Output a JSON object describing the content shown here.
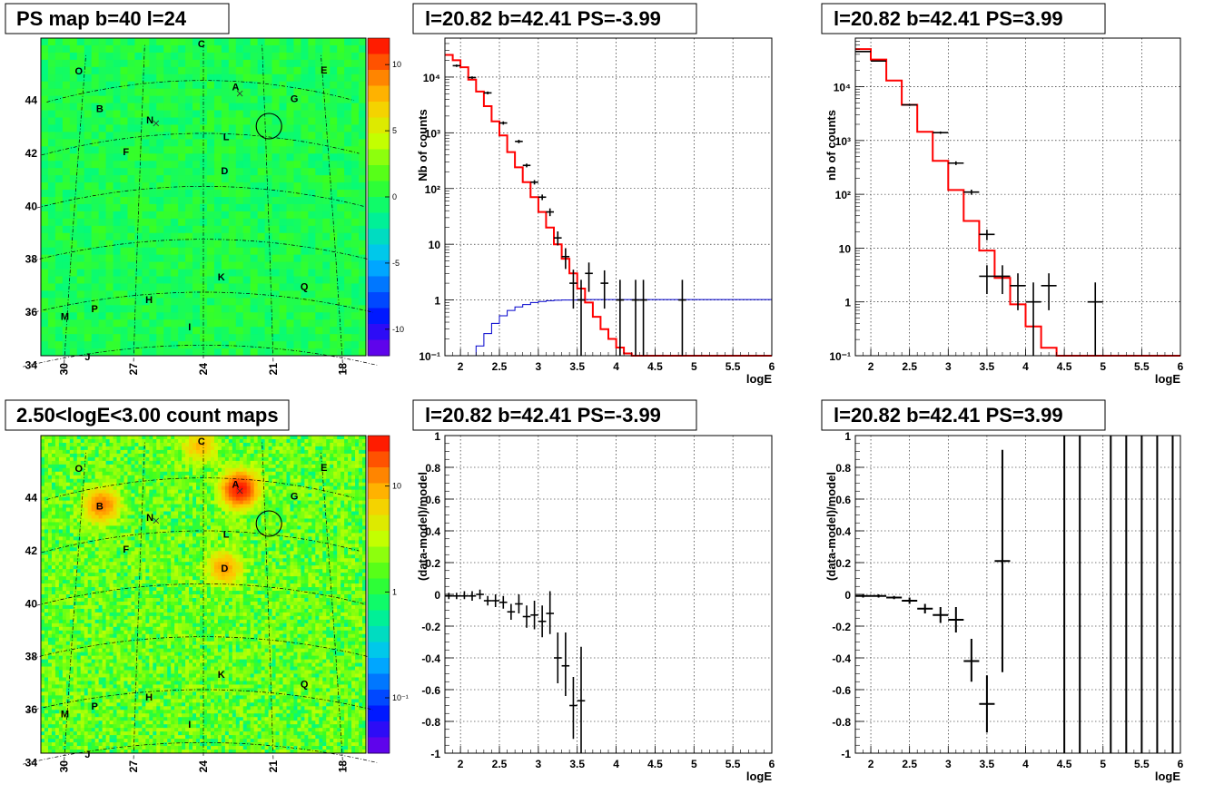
{
  "colors": {
    "model_line": "#ff0000",
    "background_line": "#0000cc",
    "data_points": "#000000",
    "grid": "#000000"
  },
  "chart_data": [
    {
      "id": "ps-map",
      "type": "heatmap",
      "title": "PS map b=40 l=24",
      "xlabel": "",
      "ylabel": "",
      "x_ticks": [
        "30",
        "27",
        "24",
        "21",
        "18"
      ],
      "y_ticks": [
        "34",
        "36",
        "38",
        "40",
        "42",
        "44"
      ],
      "colorbar_ticks": [
        "10",
        "5",
        "0",
        "-5",
        "-10"
      ],
      "colorbar_range": [
        -12,
        12
      ],
      "base_value": 0,
      "sources": [
        {
          "label": "O",
          "l": 30.3,
          "b": 44.9
        },
        {
          "label": "C",
          "l": 24.1,
          "b": 45.4
        },
        {
          "label": "E",
          "l": 17.9,
          "b": 44.9
        },
        {
          "label": "A",
          "l": 22.4,
          "b": 43.8
        },
        {
          "label": "G",
          "l": 19.5,
          "b": 43.6
        },
        {
          "label": "B",
          "l": 29.1,
          "b": 43.3
        },
        {
          "label": "N",
          "l": 26.6,
          "b": 42.6
        },
        {
          "label": "L",
          "l": 22.9,
          "b": 41.9
        },
        {
          "label": "F",
          "l": 27.7,
          "b": 41.5
        },
        {
          "label": "D",
          "l": 23.0,
          "b": 40.6
        },
        {
          "label": "K",
          "l": 23.2,
          "b": 36.6
        },
        {
          "label": "Q",
          "l": 19.5,
          "b": 36.5
        },
        {
          "label": "M",
          "l": 30.1,
          "b": 35.6
        },
        {
          "label": "P",
          "l": 28.8,
          "b": 35.7
        },
        {
          "label": "H",
          "l": 26.4,
          "b": 35.8
        },
        {
          "label": "I",
          "l": 24.6,
          "b": 34.7
        },
        {
          "label": "J",
          "l": 29.0,
          "b": 33.9
        }
      ],
      "circle": {
        "l": 20.82,
        "b": 42.41
      }
    },
    {
      "id": "spectrum-neg",
      "type": "line",
      "title": "l=20.82 b=42.41 PS=-3.99",
      "xlabel": "logE",
      "ylabel": "Nb of counts",
      "xlim": [
        1.8,
        6
      ],
      "ylim": [
        0.1,
        50000
      ],
      "log_y": true,
      "x_ticks": [
        "2",
        "2.5",
        "3",
        "3.5",
        "4",
        "4.5",
        "5",
        "5.5",
        "6"
      ],
      "y_ticks": [
        "10⁻¹",
        "1",
        "10",
        "10²",
        "10³",
        "10⁴"
      ],
      "model_step": {
        "edges": [
          1.8,
          1.9,
          2.0,
          2.1,
          2.2,
          2.3,
          2.4,
          2.5,
          2.6,
          2.7,
          2.8,
          2.9,
          3.0,
          3.1,
          3.2,
          3.3,
          3.4,
          3.5,
          3.6,
          3.7,
          3.8,
          3.9,
          4.0,
          4.1,
          4.2,
          6.0
        ],
        "values": [
          25000,
          20000,
          15000,
          9000,
          5500,
          3000,
          1600,
          900,
          450,
          240,
          130,
          70,
          38,
          20,
          10,
          5.5,
          3,
          1.6,
          0.9,
          0.5,
          0.3,
          0.2,
          0.14,
          0.11,
          0.1
        ]
      },
      "background_step": {
        "edges": [
          1.8,
          2.2,
          2.3,
          2.4,
          2.5,
          2.6,
          2.7,
          2.8,
          2.9,
          3.0,
          3.1,
          3.2,
          3.3,
          3.5,
          6.0
        ],
        "values": [
          0.1,
          0.15,
          0.25,
          0.38,
          0.52,
          0.65,
          0.75,
          0.83,
          0.9,
          0.94,
          0.97,
          0.99,
          1.0,
          1.02
        ]
      },
      "points": [
        {
          "x": 1.95,
          "y": 16000,
          "ex": 0.05,
          "lo": 15200,
          "hi": 16800
        },
        {
          "x": 2.15,
          "y": 9800,
          "ex": 0.05,
          "lo": 9300,
          "hi": 10300
        },
        {
          "x": 2.35,
          "y": 5200,
          "ex": 0.05,
          "lo": 4900,
          "hi": 5500
        },
        {
          "x": 2.55,
          "y": 1500,
          "ex": 0.05,
          "lo": 1400,
          "hi": 1600
        },
        {
          "x": 2.75,
          "y": 700,
          "ex": 0.05,
          "lo": 650,
          "hi": 750
        },
        {
          "x": 2.85,
          "y": 260,
          "ex": 0.05,
          "lo": 240,
          "hi": 280
        },
        {
          "x": 2.95,
          "y": 130,
          "ex": 0.05,
          "lo": 118,
          "hi": 142
        },
        {
          "x": 3.05,
          "y": 70,
          "ex": 0.05,
          "lo": 62,
          "hi": 78
        },
        {
          "x": 3.15,
          "y": 38,
          "ex": 0.05,
          "lo": 32,
          "hi": 44
        },
        {
          "x": 3.25,
          "y": 13,
          "ex": 0.05,
          "lo": 9.5,
          "hi": 17
        },
        {
          "x": 3.35,
          "y": 6,
          "ex": 0.05,
          "lo": 3.6,
          "hi": 8.5
        },
        {
          "x": 3.45,
          "y": 2,
          "ex": 0.05,
          "lo": 0.7,
          "hi": 3.5
        },
        {
          "x": 3.55,
          "y": 1,
          "ex": 0.05,
          "lo": 0.1,
          "hi": 2.3
        },
        {
          "x": 3.65,
          "y": 3,
          "ex": 0.05,
          "lo": 1.4,
          "hi": 4.7
        },
        {
          "x": 3.85,
          "y": 2,
          "ex": 0.05,
          "lo": 0.7,
          "hi": 3.4
        },
        {
          "x": 4.05,
          "y": 1,
          "ex": 0.05,
          "lo": 0.1,
          "hi": 2.3
        },
        {
          "x": 4.25,
          "y": 1,
          "ex": 0.05,
          "lo": 0.1,
          "hi": 2.3
        },
        {
          "x": 4.35,
          "y": 1,
          "ex": 0.05,
          "lo": 0.1,
          "hi": 2.3
        },
        {
          "x": 4.85,
          "y": 1,
          "ex": 0.05,
          "lo": 0.1,
          "hi": 2.3
        }
      ]
    },
    {
      "id": "spectrum-pos",
      "type": "line",
      "title": "l=20.82 b=42.41 PS=3.99",
      "xlabel": "logE",
      "ylabel": "nb of counts",
      "xlim": [
        1.8,
        6
      ],
      "ylim": [
        0.1,
        80000
      ],
      "log_y": true,
      "x_ticks": [
        "2",
        "2.5",
        "3",
        "3.5",
        "4",
        "4.5",
        "5",
        "5.5",
        "6"
      ],
      "y_ticks": [
        "10⁻¹",
        "1",
        "10",
        "10²",
        "10³",
        "10⁴"
      ],
      "model_step": {
        "edges": [
          1.8,
          2.0,
          2.2,
          2.4,
          2.6,
          2.8,
          3.0,
          3.2,
          3.4,
          3.6,
          3.8,
          4.0,
          4.2,
          4.4,
          6.0
        ],
        "values": [
          50000,
          32000,
          13000,
          4600,
          1450,
          420,
          120,
          32,
          9,
          2.8,
          0.9,
          0.35,
          0.14,
          0.1
        ]
      },
      "points": [
        {
          "x": 1.9,
          "y": 45000,
          "ex": 0.1,
          "lo": 44000,
          "hi": 46000
        },
        {
          "x": 2.1,
          "y": 30000,
          "ex": 0.1,
          "lo": 29300,
          "hi": 30700
        },
        {
          "x": 2.5,
          "y": 4600,
          "ex": 0.1,
          "lo": 4400,
          "hi": 4800
        },
        {
          "x": 2.9,
          "y": 1400,
          "ex": 0.1,
          "lo": 1330,
          "hi": 1470
        },
        {
          "x": 3.1,
          "y": 380,
          "ex": 0.1,
          "lo": 350,
          "hi": 410
        },
        {
          "x": 3.3,
          "y": 110,
          "ex": 0.1,
          "lo": 98,
          "hi": 122
        },
        {
          "x": 3.5,
          "y": 18,
          "ex": 0.1,
          "lo": 14,
          "hi": 22
        },
        {
          "x": 3.5,
          "y": 3,
          "ex": 0.1,
          "lo": 1.4,
          "hi": 4.8
        },
        {
          "x": 3.7,
          "y": 3,
          "ex": 0.1,
          "lo": 1.4,
          "hi": 4.8
        },
        {
          "x": 3.9,
          "y": 2,
          "ex": 0.1,
          "lo": 0.7,
          "hi": 3.4
        },
        {
          "x": 4.1,
          "y": 1,
          "ex": 0.1,
          "lo": 0.1,
          "hi": 2.3
        },
        {
          "x": 4.3,
          "y": 2,
          "ex": 0.1,
          "lo": 0.7,
          "hi": 3.4
        },
        {
          "x": 4.9,
          "y": 1,
          "ex": 0.1,
          "lo": 0.1,
          "hi": 2.3
        }
      ]
    },
    {
      "id": "count-map",
      "type": "heatmap",
      "title": "2.50<logE<3.00 count maps",
      "xlabel": "",
      "ylabel": "",
      "x_ticks": [
        "30",
        "27",
        "24",
        "21",
        "18"
      ],
      "y_ticks": [
        "34",
        "36",
        "38",
        "40",
        "42",
        "44"
      ],
      "colorbar_ticks": [
        "10",
        "1",
        "10⁻¹"
      ],
      "colorbar_range": [
        0.03,
        30
      ],
      "log_scale": true,
      "base_value": 1.5,
      "hotspots": [
        {
          "label": "A",
          "l": 22.2,
          "b": 43.6,
          "peak": 25
        },
        {
          "label": "B",
          "l": 29.0,
          "b": 43.3,
          "peak": 12
        },
        {
          "label": "C",
          "l": 24.2,
          "b": 45.2,
          "peak": 6
        },
        {
          "label": "D",
          "l": 23.0,
          "b": 40.6,
          "peak": 9
        }
      ],
      "circle": {
        "l": 20.82,
        "b": 42.41
      }
    },
    {
      "id": "residual-neg",
      "type": "scatter",
      "title": "l=20.82 b=42.41 PS=-3.99",
      "xlabel": "logE",
      "ylabel": "(data-model)/model",
      "xlim": [
        1.8,
        6
      ],
      "ylim": [
        -1,
        1
      ],
      "x_ticks": [
        "2",
        "2.5",
        "3",
        "3.5",
        "4",
        "4.5",
        "5",
        "5.5",
        "6"
      ],
      "y_ticks": [
        "-1",
        "-0.8",
        "-0.6",
        "-0.4",
        "-0.2",
        "0",
        "0.2",
        "0.4",
        "0.6",
        "0.8",
        "1"
      ],
      "points": [
        {
          "x": 1.85,
          "y": -0.01,
          "ex": 0.05,
          "lo": -0.03,
          "hi": 0.01
        },
        {
          "x": 1.95,
          "y": -0.01,
          "ex": 0.05,
          "lo": -0.03,
          "hi": 0.01
        },
        {
          "x": 2.05,
          "y": -0.01,
          "ex": 0.05,
          "lo": -0.03,
          "hi": 0.02
        },
        {
          "x": 2.15,
          "y": -0.01,
          "ex": 0.05,
          "lo": -0.04,
          "hi": 0.02
        },
        {
          "x": 2.25,
          "y": 0.0,
          "ex": 0.05,
          "lo": -0.03,
          "hi": 0.03
        },
        {
          "x": 2.35,
          "y": -0.04,
          "ex": 0.05,
          "lo": -0.07,
          "hi": -0.01
        },
        {
          "x": 2.45,
          "y": -0.04,
          "ex": 0.05,
          "lo": -0.08,
          "hi": 0.0
        },
        {
          "x": 2.55,
          "y": -0.05,
          "ex": 0.05,
          "lo": -0.09,
          "hi": -0.01
        },
        {
          "x": 2.65,
          "y": -0.11,
          "ex": 0.05,
          "lo": -0.16,
          "hi": -0.06
        },
        {
          "x": 2.75,
          "y": -0.06,
          "ex": 0.05,
          "lo": -0.12,
          "hi": 0.0
        },
        {
          "x": 2.85,
          "y": -0.14,
          "ex": 0.05,
          "lo": -0.21,
          "hi": -0.07
        },
        {
          "x": 2.95,
          "y": -0.13,
          "ex": 0.05,
          "lo": -0.22,
          "hi": -0.04
        },
        {
          "x": 3.05,
          "y": -0.17,
          "ex": 0.05,
          "lo": -0.27,
          "hi": -0.07
        },
        {
          "x": 3.15,
          "y": -0.12,
          "ex": 0.05,
          "lo": -0.25,
          "hi": 0.02
        },
        {
          "x": 3.25,
          "y": -0.4,
          "ex": 0.05,
          "lo": -0.56,
          "hi": -0.24
        },
        {
          "x": 3.35,
          "y": -0.45,
          "ex": 0.05,
          "lo": -0.64,
          "hi": -0.24
        },
        {
          "x": 3.45,
          "y": -0.7,
          "ex": 0.05,
          "lo": -0.91,
          "hi": -0.52
        },
        {
          "x": 3.55,
          "y": -0.67,
          "ex": 0.05,
          "lo": -1.0,
          "hi": -0.33
        }
      ]
    },
    {
      "id": "residual-pos",
      "type": "scatter",
      "title": "l=20.82 b=42.41 PS=3.99",
      "xlabel": "logE",
      "ylabel": "(data-model)/model",
      "xlim": [
        1.8,
        6
      ],
      "ylim": [
        -1,
        1
      ],
      "x_ticks": [
        "2",
        "2.5",
        "3",
        "3.5",
        "4",
        "4.5",
        "5",
        "5.5",
        "6"
      ],
      "y_ticks": [
        "-1",
        "-0.8",
        "-0.6",
        "-0.4",
        "-0.2",
        "0",
        "0.2",
        "0.4",
        "0.6",
        "0.8",
        "1"
      ],
      "points": [
        {
          "x": 1.9,
          "y": -0.01,
          "ex": 0.1,
          "lo": -0.02,
          "hi": 0.0
        },
        {
          "x": 2.1,
          "y": -0.01,
          "ex": 0.1,
          "lo": -0.02,
          "hi": 0.0
        },
        {
          "x": 2.3,
          "y": -0.02,
          "ex": 0.1,
          "lo": -0.03,
          "hi": -0.01
        },
        {
          "x": 2.5,
          "y": -0.04,
          "ex": 0.1,
          "lo": -0.06,
          "hi": -0.02
        },
        {
          "x": 2.7,
          "y": -0.09,
          "ex": 0.1,
          "lo": -0.12,
          "hi": -0.06
        },
        {
          "x": 2.9,
          "y": -0.13,
          "ex": 0.1,
          "lo": -0.18,
          "hi": -0.08
        },
        {
          "x": 3.1,
          "y": -0.16,
          "ex": 0.1,
          "lo": -0.24,
          "hi": -0.08
        },
        {
          "x": 3.3,
          "y": -0.42,
          "ex": 0.1,
          "lo": -0.55,
          "hi": -0.28
        },
        {
          "x": 3.5,
          "y": -0.69,
          "ex": 0.1,
          "lo": -0.87,
          "hi": -0.51
        },
        {
          "x": 3.7,
          "y": 0.21,
          "ex": 0.1,
          "lo": -0.49,
          "hi": 0.91
        },
        {
          "x": 4.5,
          "y": 1.0,
          "ex": 0.0,
          "lo": -1.0,
          "hi": 1.0
        },
        {
          "x": 4.7,
          "y": 1.0,
          "ex": 0.0,
          "lo": -1.0,
          "hi": 1.0
        },
        {
          "x": 5.1,
          "y": 1.0,
          "ex": 0.0,
          "lo": -1.0,
          "hi": 1.0
        },
        {
          "x": 5.3,
          "y": 1.0,
          "ex": 0.0,
          "lo": -1.0,
          "hi": 1.0
        },
        {
          "x": 5.5,
          "y": 1.0,
          "ex": 0.0,
          "lo": -1.0,
          "hi": 1.0
        },
        {
          "x": 5.7,
          "y": 1.0,
          "ex": 0.0,
          "lo": -1.0,
          "hi": 1.0
        },
        {
          "x": 5.9,
          "y": 1.0,
          "ex": 0.0,
          "lo": -1.0,
          "hi": 1.0
        }
      ]
    }
  ]
}
